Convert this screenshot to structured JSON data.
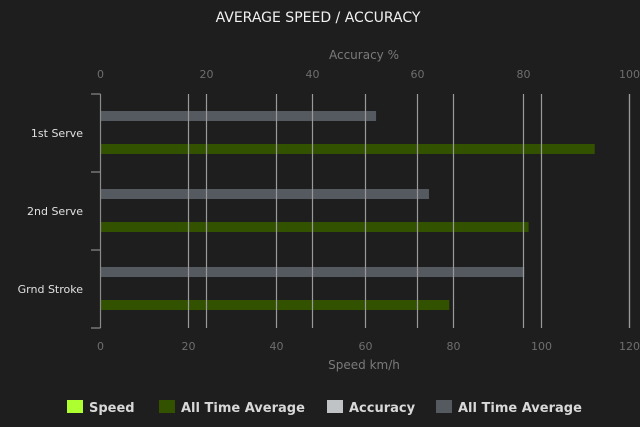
{
  "chart_data": {
    "type": "bar",
    "orientation": "horizontal",
    "title": "AVERAGE SPEED / ACCURACY",
    "categories": [
      "1st Serve",
      "2nd Serve",
      "Grnd Stroke"
    ],
    "top_axis": {
      "label": "Accuracy %",
      "range": [
        0,
        100
      ],
      "ticks": [
        "0",
        "20",
        "40",
        "60",
        "80",
        "100"
      ]
    },
    "bottom_axis": {
      "label": "Speed km/h",
      "range": [
        0,
        120
      ],
      "ticks": [
        "0",
        "20",
        "40",
        "60",
        "80",
        "100",
        "120"
      ]
    },
    "grid": true,
    "legend_position": "bottom",
    "series": [
      {
        "name": "Speed",
        "axis": "bottom",
        "color": "#adff2f",
        "values": [
          0,
          0,
          0
        ]
      },
      {
        "name": "All Time Average",
        "axis": "bottom",
        "color": "#335200",
        "values": [
          112,
          97,
          79
        ]
      },
      {
        "name": "Accuracy",
        "axis": "top",
        "color": "#c0c3c6",
        "values": [
          0,
          0,
          0
        ]
      },
      {
        "name": "All Time Average",
        "axis": "top",
        "color": "#555a60",
        "values": [
          52,
          62,
          80
        ]
      }
    ]
  }
}
